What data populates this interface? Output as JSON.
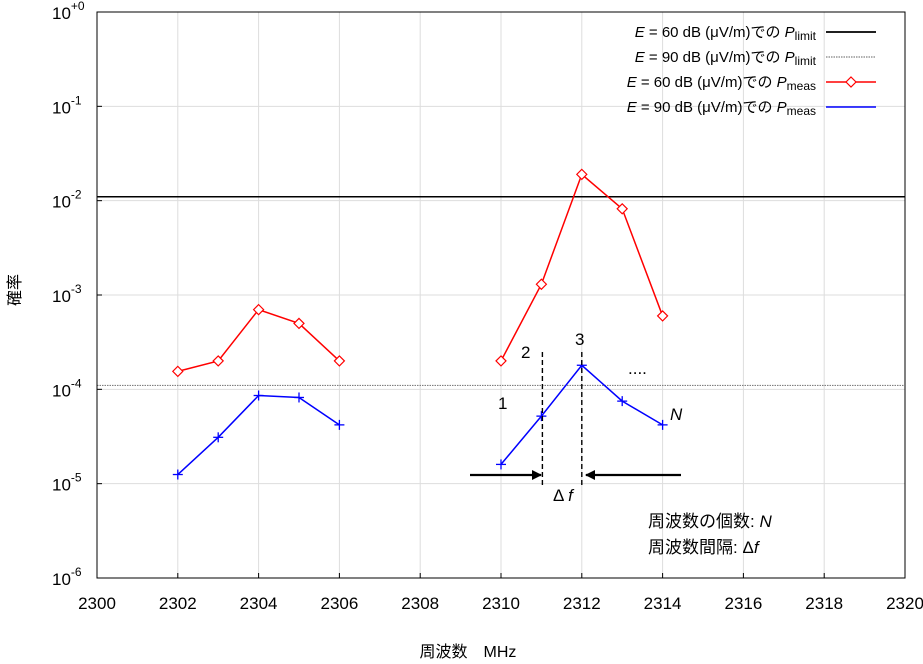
{
  "chart_data": {
    "type": "line",
    "xlabel": "周波数　MHz",
    "ylabel": "確率",
    "xlim": [
      2300,
      2320
    ],
    "ylim_exponent": [
      -6,
      0
    ],
    "yscale": "log",
    "x_ticks": [
      "2300",
      "2302",
      "2304",
      "2306",
      "2308",
      "2310",
      "2312",
      "2314",
      "2316",
      "2318",
      "2320"
    ],
    "y_ticks": [
      {
        "base": "10",
        "exp": "+0"
      },
      {
        "base": "10",
        "exp": "-1"
      },
      {
        "base": "10",
        "exp": "-2"
      },
      {
        "base": "10",
        "exp": "-3"
      },
      {
        "base": "10",
        "exp": "-4"
      },
      {
        "base": "10",
        "exp": "-5"
      },
      {
        "base": "10",
        "exp": "-6"
      }
    ],
    "grid": true,
    "legend_position": "top-right",
    "hlines": [
      {
        "name": "E = 60 dB (μV/m)での P_limit",
        "value": 0.011,
        "color": "#000000",
        "style": "solid"
      },
      {
        "name": "E = 90 dB (μV/m)での P_limit",
        "value": 0.00011,
        "color": "#808080",
        "style": "dotted"
      }
    ],
    "series": [
      {
        "name": "E = 60 dB (μV/m)での P_meas",
        "color": "#ff0000",
        "marker": "diamond",
        "segments": [
          {
            "x": [
              2302,
              2303,
              2304,
              2305,
              2306
            ],
            "y": [
              0.000155,
              0.0002,
              0.0007,
              0.0005,
              0.0002
            ]
          },
          {
            "x": [
              2310,
              2311,
              2312,
              2313,
              2314
            ],
            "y": [
              0.0002,
              0.0013,
              0.019,
              0.0082,
              0.0006
            ]
          }
        ]
      },
      {
        "name": "E = 90 dB (μV/m)での P_meas",
        "color": "#0000ff",
        "marker": "plus",
        "segments": [
          {
            "x": [
              2302,
              2303,
              2304,
              2305,
              2306
            ],
            "y": [
              1.25e-05,
              3.1e-05,
              8.6e-05,
              8.2e-05,
              4.2e-05
            ]
          },
          {
            "x": [
              2310,
              2311,
              2312,
              2313,
              2314
            ],
            "y": [
              1.6e-05,
              5.2e-05,
              0.00018,
              7.5e-05,
              4.2e-05
            ]
          }
        ]
      }
    ],
    "legend": [
      {
        "prefix": "E",
        "mid": " = 60 dB (μV/m)での ",
        "p": "P",
        "sub": "limit"
      },
      {
        "prefix": "E",
        "mid": " = 90 dB (μV/m)での ",
        "p": "P",
        "sub": "limit"
      },
      {
        "prefix": "E",
        "mid": " = 60 dB (μV/m)での ",
        "p": "P",
        "sub": "meas"
      },
      {
        "prefix": "E",
        "mid": " = 90 dB (μV/m)での ",
        "p": "P",
        "sub": "meas"
      }
    ],
    "annotations": {
      "point_labels": [
        "1",
        "2",
        "3",
        "N"
      ],
      "ellipsis": "....",
      "delta": "Δ",
      "delta_f": "f",
      "note_count_label": "周波数の個数: ",
      "note_count_var": "N",
      "note_interval_label": "周波数間隔:  ",
      "note_interval_delta": "Δ",
      "note_interval_var": "f"
    }
  }
}
